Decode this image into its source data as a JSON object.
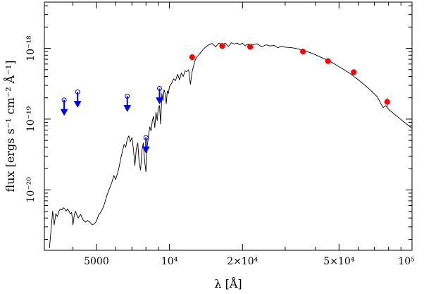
{
  "chart_data": {
    "type": "scatter",
    "xlabel": "λ [Å]",
    "ylabel": "flux [ergs s⁻¹ cm⁻² Å⁻¹]",
    "xscale": "log",
    "yscale": "log",
    "xlim": [
      3050,
      100000
    ],
    "ylim": [
      1.4e-21,
      4.5e-18
    ],
    "x_ticks": [
      {
        "value": 5000,
        "label": "5000"
      },
      {
        "value": 10000,
        "label": "10⁴"
      },
      {
        "value": 20000,
        "label": "2×10⁴"
      },
      {
        "value": 50000,
        "label": "5×10⁴"
      },
      {
        "value": 100000,
        "label": "10⁵"
      }
    ],
    "y_ticks": [
      {
        "value": 1e-20,
        "label": "10⁻²⁰"
      },
      {
        "value": 1e-19,
        "label": "10⁻¹⁹"
      },
      {
        "value": 1e-18,
        "label": "10⁻¹⁸"
      }
    ],
    "grid": false,
    "colors": {
      "spectrum": "#000000",
      "detections": "#ff0000",
      "upper_limits": "#0000ff"
    },
    "series": [
      {
        "role": "model-spectrum",
        "style": "line",
        "x": [
          3200,
          3300,
          3350,
          3400,
          3450,
          3500,
          3550,
          3600,
          3650,
          3700,
          3750,
          3800,
          3850,
          3900,
          3950,
          4000,
          4050,
          4100,
          4150,
          4200,
          4300,
          4400,
          4500,
          4600,
          4700,
          4800,
          4900,
          5000,
          5100,
          5200,
          5300,
          5400,
          5500,
          5600,
          5700,
          5800,
          5900,
          6000,
          6100,
          6200,
          6300,
          6400,
          6500,
          6600,
          6700,
          6800,
          6900,
          7000,
          7100,
          7200,
          7300,
          7400,
          7500,
          7600,
          7700,
          7800,
          7900,
          8000,
          8100,
          8200,
          8300,
          8400,
          8500,
          8600,
          8700,
          8800,
          8900,
          9000,
          9100,
          9200,
          9300,
          9400,
          9500,
          9600,
          9700,
          9800,
          9900,
          10000,
          10200,
          10400,
          10600,
          10800,
          11000,
          11200,
          11400,
          11600,
          11800,
          12000,
          12200,
          12400,
          12600,
          12800,
          13000,
          13300,
          13600,
          14000,
          14500,
          15000,
          15500,
          16000,
          16500,
          17000,
          17500,
          18000,
          18500,
          19000,
          19500,
          20000,
          20500,
          21000,
          22000,
          23000,
          24000,
          25000,
          26000,
          27000,
          28000,
          29000,
          30000,
          32000,
          34000,
          36000,
          38000,
          40000,
          42000,
          44000,
          46000,
          48000,
          50000,
          53000,
          56000,
          60000,
          64000,
          68000,
          72000,
          74000,
          76000,
          78000,
          80000,
          84000,
          88000,
          92000,
          96000,
          100000
        ],
        "y": [
          1.5e-21,
          5e-21,
          3.2e-21,
          4.6e-21,
          4.2e-21,
          5e-21,
          5.4e-21,
          5.2e-21,
          5.6e-21,
          5.4e-21,
          5e-21,
          5.4e-21,
          5e-21,
          4.6e-21,
          4.8e-21,
          3.2e-21,
          4.4e-21,
          5e-21,
          4.4e-21,
          4e-21,
          4.5e-21,
          3.8e-21,
          3.5e-21,
          3.7e-21,
          3.5e-21,
          3.2e-21,
          3.3e-21,
          3.6e-21,
          4.4e-21,
          4.8e-21,
          5.4e-21,
          6.4e-21,
          8e-21,
          9.6e-21,
          1.1e-20,
          1.3e-20,
          1.6e-20,
          1.4e-20,
          1.7e-20,
          2.1e-20,
          2.8e-20,
          3.5e-20,
          4.4e-20,
          4e-20,
          5.2e-20,
          5.8e-20,
          4.8e-20,
          5.5e-20,
          3.8e-20,
          2.2e-20,
          3.8e-20,
          4.6e-20,
          2.4e-20,
          1.9e-20,
          3.6e-20,
          4.6e-20,
          2.6e-20,
          1.8e-20,
          4.2e-20,
          5.8e-20,
          7.8e-20,
          6.8e-20,
          9.5e-20,
          1.1e-19,
          7.6e-20,
          1.25e-19,
          9.5e-20,
          1.45e-19,
          1.55e-19,
          8.5e-20,
          2.3e-19,
          1.8e-19,
          2.6e-19,
          2.3e-19,
          1.65e-19,
          2.5e-19,
          2.3e-19,
          2.9e-19,
          3.2e-19,
          3.7e-19,
          3.5e-19,
          4.3e-19,
          3.6e-19,
          4.5e-19,
          4e-19,
          4.8e-19,
          4.7e-19,
          5e-19,
          3.1e-19,
          4.7e-19,
          5.8e-19,
          7e-19,
          7.6e-19,
          8.3e-19,
          9.2e-19,
          1.02e-18,
          1.12e-18,
          1.17e-18,
          1.05e-18,
          1.19e-18,
          1.12e-18,
          1.18e-18,
          1.06e-18,
          1.2e-18,
          1.15e-18,
          1.19e-18,
          1.12e-18,
          1.18e-18,
          1.08e-18,
          1.15e-18,
          1.12e-18,
          1.16e-18,
          1.05e-18,
          1.12e-18,
          1.08e-18,
          1.1e-18,
          1.02e-18,
          1.07e-18,
          1.04e-18,
          1.02e-18,
          9.8e-19,
          9.2e-19,
          8.7e-19,
          8.1e-19,
          7.5e-19,
          7e-19,
          6.5e-19,
          6e-19,
          5.5e-19,
          4.9e-19,
          4.3e-19,
          3.6e-19,
          3e-19,
          2.5e-19,
          2.05e-19,
          1.7e-19,
          1.45e-19,
          1.55e-19,
          1.38e-19,
          1.2e-19,
          1.05e-19,
          9.3e-20,
          8.3e-20,
          7.4e-20
        ]
      },
      {
        "role": "photometry",
        "style": "filled-circle",
        "x": [
          12400,
          16500,
          21500,
          35500,
          45000,
          57500,
          79000
        ],
        "y": [
          7.5e-19,
          1.08e-18,
          1.05e-18,
          9e-19,
          6.6e-19,
          4.6e-19,
          1.75e-19
        ],
        "yerr": [
          0,
          0,
          0,
          0,
          0,
          0,
          2.5e-20
        ]
      },
      {
        "role": "upper-limits",
        "style": "open-circle-down-arrow",
        "x": [
          3680,
          4180,
          6700,
          8000,
          9100
        ],
        "y": [
          1.86e-19,
          2.42e-19,
          2.11e-19,
          5.5e-20,
          2.71e-19
        ]
      }
    ]
  }
}
